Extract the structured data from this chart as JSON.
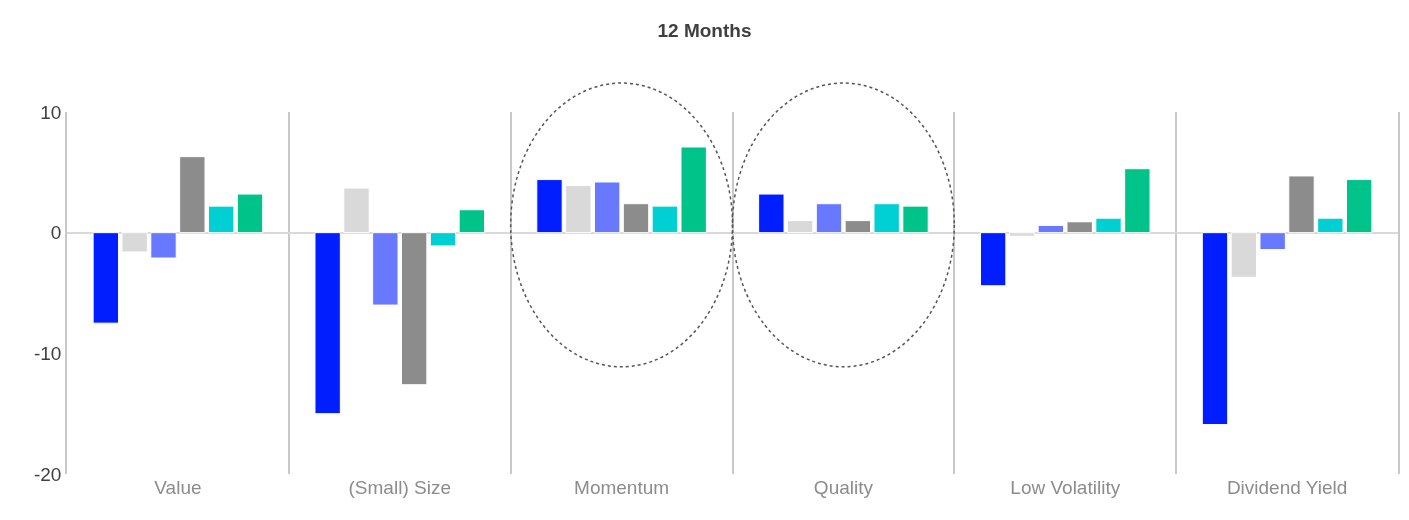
{
  "chart_data": {
    "type": "bar",
    "title": "12 Months",
    "categories": [
      "Value",
      "(Small) Size",
      "Momentum",
      "Quality",
      "Low Volatility",
      "Dividend Yield"
    ],
    "series": [
      {
        "color": "#001eff",
        "values": [
          -7.5,
          -15.0,
          4.4,
          3.2,
          -4.4,
          -15.9
        ]
      },
      {
        "color": "#d9d9d9",
        "values": [
          -1.6,
          3.7,
          3.9,
          1.0,
          -0.3,
          -3.7
        ]
      },
      {
        "color": "#6878ff",
        "values": [
          -2.1,
          -6.0,
          4.2,
          2.4,
          0.6,
          -1.4
        ]
      },
      {
        "color": "#8c8c8c",
        "values": [
          6.3,
          -12.6,
          2.4,
          1.0,
          0.9,
          4.7
        ]
      },
      {
        "color": "#00d0d4",
        "values": [
          2.2,
          -1.1,
          2.2,
          2.4,
          1.2,
          1.2
        ]
      },
      {
        "color": "#00c389",
        "values": [
          3.2,
          1.9,
          7.1,
          2.2,
          5.3,
          4.4
        ]
      }
    ],
    "ylim": [
      -20,
      10
    ],
    "yticks": [
      -20,
      -10,
      0,
      10
    ],
    "grid": "x"
  }
}
